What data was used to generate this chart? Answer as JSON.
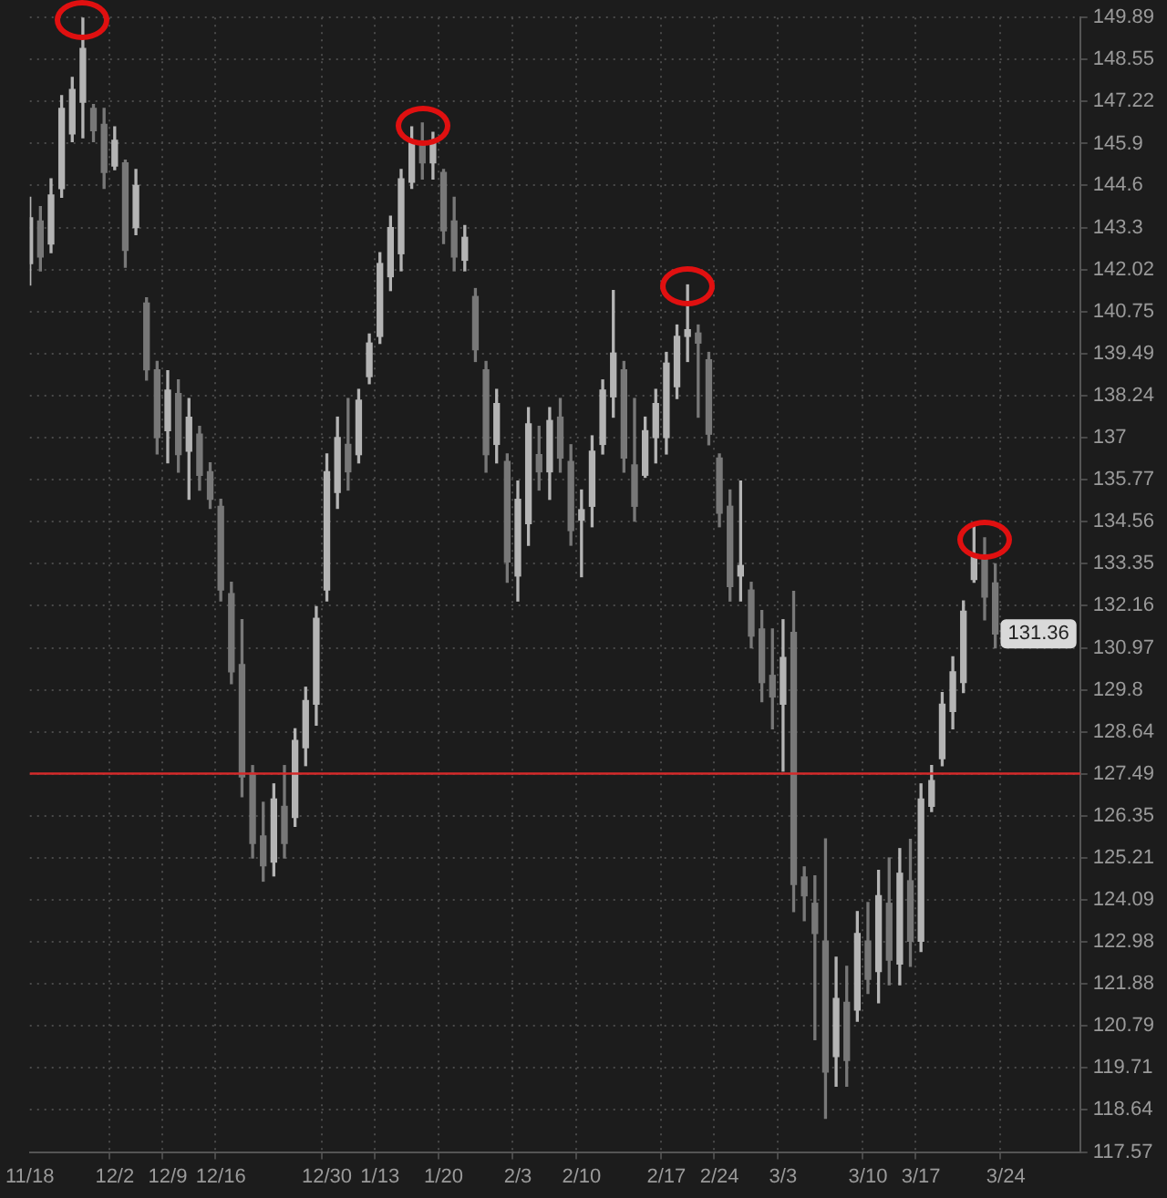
{
  "chart_data": {
    "type": "candlestick",
    "log": true,
    "grid": true,
    "colors": [
      "#b4b4b4",
      "#787878",
      "#b4b4b4",
      "#b4b4b4",
      "#b4b4b4",
      "#b4b4b4",
      "#787878",
      "#787878",
      "#b4b4b4",
      "#787878",
      "#b4b4b4",
      "#787878",
      "#787878",
      "#b4b4b4",
      "#787878",
      "#b4b4b4",
      "#787878",
      "#787878",
      "#787878",
      "#787878",
      "#787878",
      "#787878",
      "#787878",
      "#b4b4b4",
      "#787878",
      "#b4b4b4",
      "#b4b4b4",
      "#b4b4b4",
      "#b4b4b4",
      "#b4b4b4",
      "#787878",
      "#b4b4b4",
      "#b4b4b4",
      "#b4b4b4",
      "#b4b4b4",
      "#b4b4b4",
      "#b4b4b4",
      "#787878",
      "#b4b4b4",
      "#787878",
      "#787878",
      "#b4b4b4",
      "#787878",
      "#787878",
      "#b4b4b4",
      "#787878",
      "#b4b4b4",
      "#b4b4b4",
      "#787878",
      "#b4b4b4",
      "#787878",
      "#787878",
      "#b4b4b4",
      "#b4b4b4",
      "#b4b4b4",
      "#b4b4b4",
      "#787878",
      "#787878",
      "#b4b4b4",
      "#b4b4b4",
      "#b4b4b4",
      "#b4b4b4",
      "#b4b4b4",
      "#787878",
      "#787878",
      "#787878",
      "#787878",
      "#b4b4b4",
      "#787878",
      "#787878",
      "#787878",
      "#b4b4b4",
      "#787878",
      "#787878",
      "#787878",
      "#787878",
      "#b4b4b4",
      "#787878",
      "#b4b4b4",
      "#787878",
      "#b4b4b4",
      "#787878",
      "#b4b4b4",
      "#787878",
      "#b4b4b4",
      "#b4b4b4",
      "#b4b4b4",
      "#b4b4b4",
      "#b4b4b4",
      "#b4b4b4",
      "#787878",
      "#787878",
      null,
      null,
      null,
      null,
      null,
      null,
      null,
      null
    ],
    "categories": [
      "11/18",
      null,
      null,
      null,
      null,
      null,
      null,
      null,
      "12/2",
      null,
      null,
      null,
      null,
      "12/9",
      null,
      null,
      null,
      null,
      "12/16",
      null,
      null,
      null,
      null,
      null,
      null,
      null,
      null,
      null,
      "12/30",
      null,
      null,
      null,
      null,
      "1/13",
      null,
      null,
      null,
      null,
      null,
      "1/20",
      null,
      null,
      null,
      null,
      null,
      null,
      "2/3",
      null,
      null,
      null,
      null,
      null,
      "2/10",
      null,
      null,
      null,
      null,
      null,
      null,
      null,
      "2/17",
      null,
      null,
      null,
      null,
      "2/24",
      null,
      null,
      null,
      null,
      null,
      "3/3",
      null,
      null,
      null,
      null,
      null,
      null,
      null,
      "3/10",
      null,
      null,
      null,
      null,
      "3/17",
      null,
      null,
      null,
      null,
      null,
      null,
      null,
      "3/24",
      null,
      null,
      null,
      null,
      null,
      null,
      null
    ],
    "ohlc": [
      [
        142.2,
        144.23,
        141.55,
        143.6
      ],
      [
        143.5,
        143.94,
        141.98,
        142.4
      ],
      [
        142.8,
        144.8,
        142.53,
        144.3
      ],
      [
        144.5,
        147.4,
        144.23,
        147.0
      ],
      [
        146.2,
        147.98,
        145.96,
        147.6
      ],
      [
        147.2,
        149.89,
        146.08,
        148.9
      ],
      [
        147.0,
        147.12,
        145.96,
        146.3
      ],
      [
        146.5,
        147.0,
        144.51,
        145.0
      ],
      [
        145.2,
        146.42,
        145.09,
        146.0
      ],
      [
        145.3,
        145.38,
        142.09,
        142.6
      ],
      [
        143.3,
        145.09,
        143.08,
        144.6
      ],
      [
        141.0,
        141.16,
        138.7,
        139.0
      ],
      [
        139.0,
        139.25,
        136.52,
        137.0
      ],
      [
        137.2,
        138.97,
        136.26,
        138.4
      ],
      [
        138.3,
        138.7,
        135.99,
        136.5
      ],
      [
        136.6,
        138.15,
        135.2,
        137.6
      ],
      [
        137.1,
        137.33,
        135.47,
        135.9
      ],
      [
        136.0,
        136.26,
        134.94,
        135.2
      ],
      [
        135.0,
        135.2,
        132.29,
        132.6
      ],
      [
        132.5,
        132.82,
        129.97,
        130.3
      ],
      [
        130.5,
        131.76,
        126.86,
        127.4
      ],
      [
        127.5,
        127.71,
        125.21,
        125.6
      ],
      [
        125.8,
        126.71,
        124.59,
        125.0
      ],
      [
        125.1,
        127.21,
        124.73,
        126.8
      ],
      [
        126.6,
        127.71,
        125.21,
        125.6
      ],
      [
        126.3,
        128.72,
        126.06,
        128.4
      ],
      [
        128.2,
        129.87,
        127.71,
        129.5
      ],
      [
        129.4,
        132.13,
        128.82,
        131.8
      ],
      [
        132.6,
        136.52,
        132.29,
        136.0
      ],
      [
        135.4,
        137.6,
        134.94,
        137.0
      ],
      [
        136.8,
        138.15,
        135.47,
        136.0
      ],
      [
        136.5,
        138.42,
        136.26,
        138.1
      ],
      [
        138.8,
        140.07,
        138.59,
        139.8
      ],
      [
        140.0,
        142.53,
        139.79,
        142.2
      ],
      [
        141.8,
        143.65,
        141.38,
        143.3
      ],
      [
        142.5,
        145.09,
        141.98,
        144.8
      ],
      [
        144.7,
        146.42,
        144.51,
        146.0
      ],
      [
        145.9,
        146.54,
        144.8,
        145.3
      ],
      [
        145.3,
        146.25,
        144.8,
        146.0
      ],
      [
        145.0,
        145.09,
        142.81,
        143.2
      ],
      [
        143.5,
        144.23,
        141.98,
        142.4
      ],
      [
        142.3,
        143.36,
        141.98,
        143.0
      ],
      [
        141.2,
        141.44,
        139.25,
        139.6
      ],
      [
        139.0,
        139.25,
        135.99,
        136.5
      ],
      [
        136.8,
        138.42,
        136.26,
        138.0
      ],
      [
        136.3,
        136.52,
        132.82,
        133.4
      ],
      [
        133.0,
        135.73,
        132.29,
        135.2
      ],
      [
        134.5,
        137.88,
        133.88,
        137.4
      ],
      [
        136.5,
        137.33,
        135.47,
        136.0
      ],
      [
        136.0,
        137.88,
        135.2,
        137.5
      ],
      [
        137.6,
        138.15,
        135.99,
        136.4
      ],
      [
        136.3,
        136.79,
        133.88,
        134.3
      ],
      [
        134.6,
        135.47,
        132.98,
        134.9
      ],
      [
        135.0,
        137.05,
        134.41,
        136.6
      ],
      [
        136.8,
        138.7,
        136.52,
        138.4
      ],
      [
        138.2,
        141.38,
        137.6,
        139.5
      ],
      [
        139.0,
        139.25,
        135.99,
        136.4
      ],
      [
        136.2,
        138.15,
        134.57,
        135.0
      ],
      [
        135.9,
        137.6,
        135.84,
        137.2
      ],
      [
        137.0,
        138.42,
        136.26,
        138.0
      ],
      [
        137.0,
        139.52,
        136.52,
        139.2
      ],
      [
        138.5,
        140.34,
        138.15,
        140.0
      ],
      [
        140.0,
        141.55,
        139.25,
        140.2
      ],
      [
        140.1,
        140.34,
        137.6,
        139.8
      ],
      [
        139.3,
        139.52,
        136.79,
        137.1
      ],
      [
        136.4,
        136.52,
        134.41,
        134.8
      ],
      [
        135.0,
        135.47,
        132.29,
        132.7
      ],
      [
        133.0,
        135.73,
        132.29,
        133.3
      ],
      [
        132.6,
        132.82,
        130.97,
        131.3
      ],
      [
        131.5,
        132.02,
        129.47,
        130.0
      ],
      [
        130.2,
        131.5,
        128.72,
        129.6
      ],
      [
        129.4,
        131.76,
        127.56,
        130.7
      ],
      [
        131.4,
        132.56,
        123.78,
        124.5
      ],
      [
        124.7,
        124.97,
        123.54,
        124.2
      ],
      [
        124.0,
        124.73,
        120.43,
        123.2
      ],
      [
        123.0,
        125.72,
        118.42,
        119.6
      ],
      [
        120.0,
        122.58,
        119.24,
        121.5
      ],
      [
        121.4,
        122.34,
        119.24,
        119.9
      ],
      [
        121.2,
        123.78,
        120.91,
        123.2
      ],
      [
        123.0,
        124.02,
        121.63,
        122.0
      ],
      [
        122.2,
        124.88,
        121.39,
        124.2
      ],
      [
        124.0,
        125.21,
        121.86,
        122.5
      ],
      [
        122.4,
        125.46,
        121.86,
        124.8
      ],
      [
        124.6,
        125.71,
        122.34,
        123.0
      ],
      [
        123.0,
        127.21,
        122.73,
        126.8
      ],
      [
        126.6,
        127.71,
        126.46,
        127.3
      ],
      [
        127.9,
        129.72,
        127.71,
        129.4
      ],
      [
        129.2,
        130.72,
        128.72,
        130.3
      ],
      [
        130.0,
        132.29,
        129.72,
        132.0
      ],
      [
        132.9,
        134.41,
        132.82,
        133.6
      ],
      [
        133.5,
        134.09,
        131.76,
        132.4
      ],
      [
        132.8,
        133.35,
        130.97,
        131.36
      ],
      null,
      null,
      null,
      null,
      null,
      null,
      null,
      null
    ],
    "ylim": [
      117.57,
      149.89
    ],
    "yticks": [
      117.57,
      118.64,
      119.71,
      120.79,
      121.88,
      122.98,
      124.09,
      125.21,
      126.35,
      127.49,
      128.64,
      129.8,
      130.97,
      132.16,
      133.35,
      134.56,
      135.77,
      137,
      138.24,
      139.49,
      140.75,
      142.02,
      143.3,
      144.6,
      145.9,
      147.22,
      148.55,
      149.89
    ],
    "ref_lines": [
      {
        "axis": "y",
        "value": 127.49,
        "color": "#d42a2a"
      }
    ],
    "annotations": [
      {
        "text": "131.36",
        "y": 131.36
      }
    ]
  }
}
